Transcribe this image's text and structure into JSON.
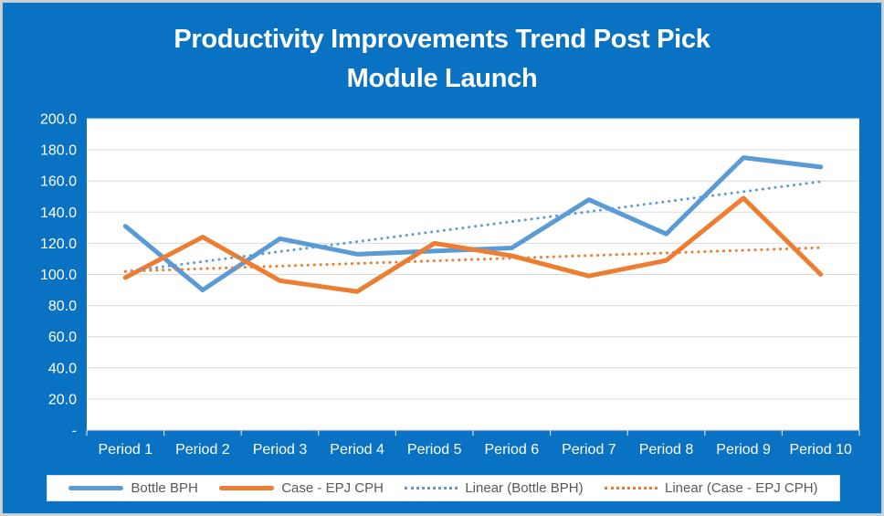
{
  "title": {
    "line1": "Productivity Improvements Trend Post Pick",
    "line2": "Module Launch"
  },
  "colors": {
    "background": "#0a72c2",
    "plot_background": "#ffffff",
    "gridline": "#d9d9d9",
    "axis_text": "#ffffff",
    "legend_text": "#595959",
    "legend_border": "#d8dfe9",
    "series_blue": "#5B9BD5",
    "series_orange": "#ED7D31"
  },
  "chart_data": {
    "type": "line",
    "title": "Productivity Improvements Trend Post Pick Module Launch",
    "categories": [
      "Period 1",
      "Period 2",
      "Period 3",
      "Period 4",
      "Period 5",
      "Period 6",
      "Period 7",
      "Period 8",
      "Period 9",
      "Period 10"
    ],
    "series": [
      {
        "name": "Bottle BPH",
        "color": "#5B9BD5",
        "style": "solid",
        "values": [
          131,
          90,
          123,
          113,
          115,
          117,
          148,
          126,
          175,
          169
        ]
      },
      {
        "name": "Case - EPJ CPH",
        "color": "#ED7D31",
        "style": "solid",
        "values": [
          98,
          124,
          96,
          89,
          120,
          112,
          99,
          109,
          149,
          100
        ]
      },
      {
        "name": "Linear (Bottle BPH)",
        "color": "#5B9BD5",
        "style": "dotted",
        "trend_endpoints": [
          101.8,
          159.6
        ]
      },
      {
        "name": "Linear (Case - EPJ CPH)",
        "color": "#ED7D31",
        "style": "dotted",
        "trend_endpoints": [
          102.0,
          117.2
        ]
      }
    ],
    "ylim": [
      0,
      200
    ],
    "y_tick_step": 20,
    "y_tick_labels_bottom_to_top": [
      "-",
      "20.0",
      "40.0",
      "60.0",
      "80.0",
      "100.0",
      "120.0",
      "140.0",
      "160.0",
      "180.0",
      "200.0"
    ],
    "grid": true,
    "legend_position": "bottom"
  }
}
